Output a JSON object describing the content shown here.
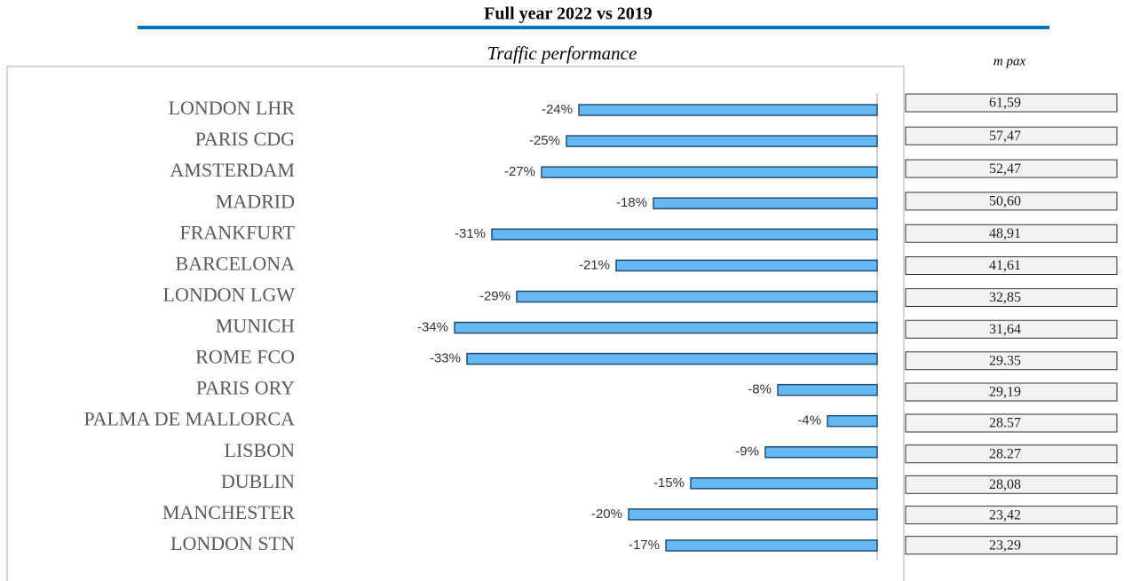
{
  "chart_data": {
    "type": "bar",
    "orientation": "horizontal",
    "title": "Full year 2022 vs 2019",
    "subtitle": "Traffic performance",
    "categories": [
      "LONDON LHR",
      "PARIS CDG",
      "AMSTERDAM",
      "MADRID",
      "FRANKFURT",
      "BARCELONA",
      "LONDON LGW",
      "MUNICH",
      "ROME FCO",
      "PARIS ORY",
      "PALMA DE MALLORCA",
      "LISBON",
      "DUBLIN",
      "MANCHESTER",
      "LONDON STN"
    ],
    "values": [
      -24,
      -25,
      -27,
      -18,
      -31,
      -21,
      -29,
      -34,
      -33,
      -8,
      -4,
      -9,
      -15,
      -20,
      -17
    ],
    "value_labels": [
      "-24%",
      "-25%",
      "-27%",
      "-18%",
      "-31%",
      "-21%",
      "-29%",
      "-34%",
      "-33%",
      "-8%",
      "-4%",
      "-9%",
      "-15%",
      "-20%",
      "-17%"
    ],
    "color": "#66b8f2",
    "xlim": [
      -35,
      0
    ],
    "pax": {
      "label": "m pax",
      "values": [
        61.59,
        57.47,
        52.47,
        50.6,
        48.91,
        41.61,
        32.85,
        31.64,
        29.35,
        29.19,
        28.57,
        28.27,
        28.08,
        23.42,
        23.29
      ],
      "value_labels": [
        "61,59",
        "57,47",
        "52,47",
        "50,60",
        "48,91",
        "41,61",
        "32,85",
        "31,64",
        "29.35",
        "29,19",
        "28.57",
        "28.27",
        "28,08",
        "23,42",
        "23,29"
      ]
    }
  }
}
